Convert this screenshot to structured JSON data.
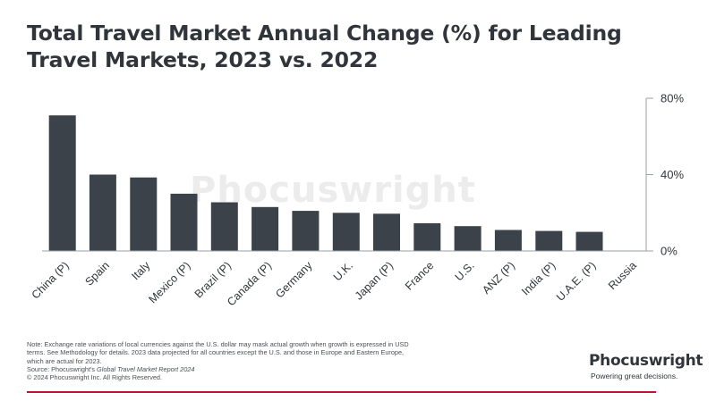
{
  "title": "Total Travel Market Annual Change (%) for Leading Travel Markets, 2023 vs. 2022",
  "watermark": "Phocuswright",
  "footnote": {
    "note": "Note: Exchange rate variations of local currencies against the U.S. dollar may mask actual growth when growth is expressed in USD terms. See Methodology for details. 2023 data projected for all countries except the U.S. and those in Europe and Eastern Europe, which are actual for 2023.",
    "source_prefix": "Source: Phocuswright's ",
    "source_title": "Global Travel Market Report 2024",
    "copyright": "© 2024 Phocuswright Inc. All Rights Reserved."
  },
  "brand": {
    "name": "Phocuswright",
    "tagline": "Powering great decisions."
  },
  "colors": {
    "bar": "#3b4249",
    "title": "#2f353b",
    "accent_rule": "#c8102e"
  },
  "chart_data": {
    "type": "bar",
    "categories": [
      "China (P)",
      "Spain",
      "Italy",
      "Mexico (P)",
      "Brazil (P)",
      "Canada (P)",
      "Germany",
      "U.K.",
      "Japan (P)",
      "France",
      "U.S.",
      "ANZ (P)",
      "India (P)",
      "U.A.E. (P)",
      "Russia"
    ],
    "values": [
      71,
      40,
      38.5,
      30,
      25.5,
      23,
      21,
      20,
      19.5,
      14.5,
      13,
      11,
      10.5,
      10,
      0
    ],
    "ylim": [
      0,
      80
    ],
    "yticks": [
      0,
      40,
      80
    ],
    "ytick_labels": [
      "0%",
      "40%",
      "80%"
    ],
    "y_axis_position": "right",
    "grid": false
  }
}
